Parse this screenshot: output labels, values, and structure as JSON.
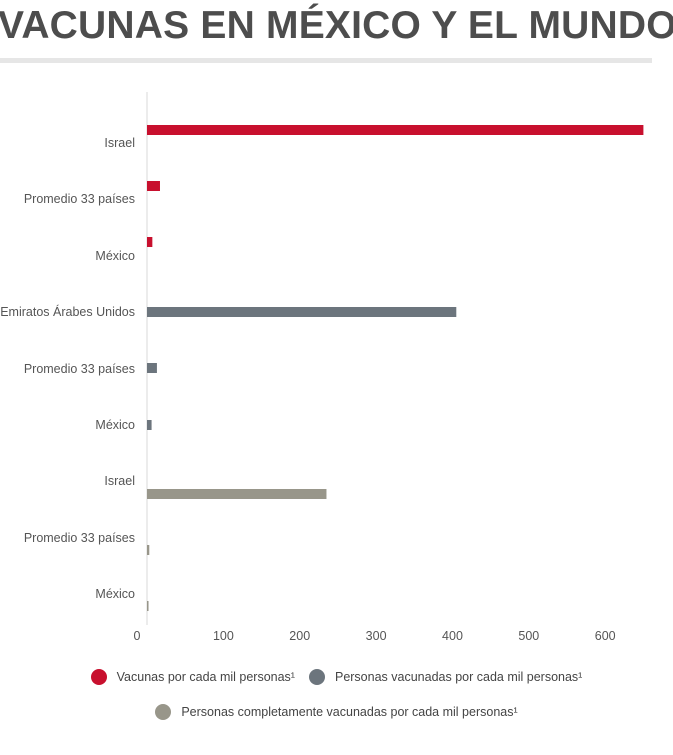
{
  "header": {
    "title": "VACUNAS EN MÉXICO Y EL MUNDO"
  },
  "colors": {
    "title": "#4d4d4d",
    "series_1": "#c8102e",
    "series_2": "#6c757d",
    "series_3": "#98968a",
    "axis_text": "#555555"
  },
  "chart_data": {
    "type": "bar",
    "orientation": "horizontal",
    "title": "",
    "xlabel": "",
    "ylabel": "",
    "xlim": [
      0,
      650
    ],
    "x_ticks": [
      0,
      100,
      200,
      300,
      400,
      500,
      600
    ],
    "grid": false,
    "legend_position": "bottom",
    "groups": [
      {
        "series": "Vacunas por cada mil personas¹",
        "color": "#c8102e",
        "categories": [
          "Israel",
          "Promedio 33 países",
          "México"
        ],
        "values": [
          650,
          17,
          7
        ]
      },
      {
        "series": "Personas vacunadas por cada mil personas¹",
        "color": "#6c757d",
        "categories": [
          "Emiratos Árabes Unidos",
          "Promedio 33 países",
          "México"
        ],
        "values": [
          405,
          13,
          6
        ]
      },
      {
        "series": "Personas completamente vacunadas por cada mil personas¹",
        "color": "#98968a",
        "categories": [
          "Israel",
          "Promedio 33 países",
          "México"
        ],
        "values": [
          235,
          3,
          2
        ]
      }
    ]
  },
  "legend": {
    "items": [
      {
        "label": "Vacunas por cada mil personas¹",
        "color": "#c8102e"
      },
      {
        "label": "Personas vacunadas por cada mil personas¹",
        "color": "#6c757d"
      },
      {
        "label": "Personas completamente vacunadas por cada mil personas¹",
        "color": "#98968a"
      }
    ]
  }
}
